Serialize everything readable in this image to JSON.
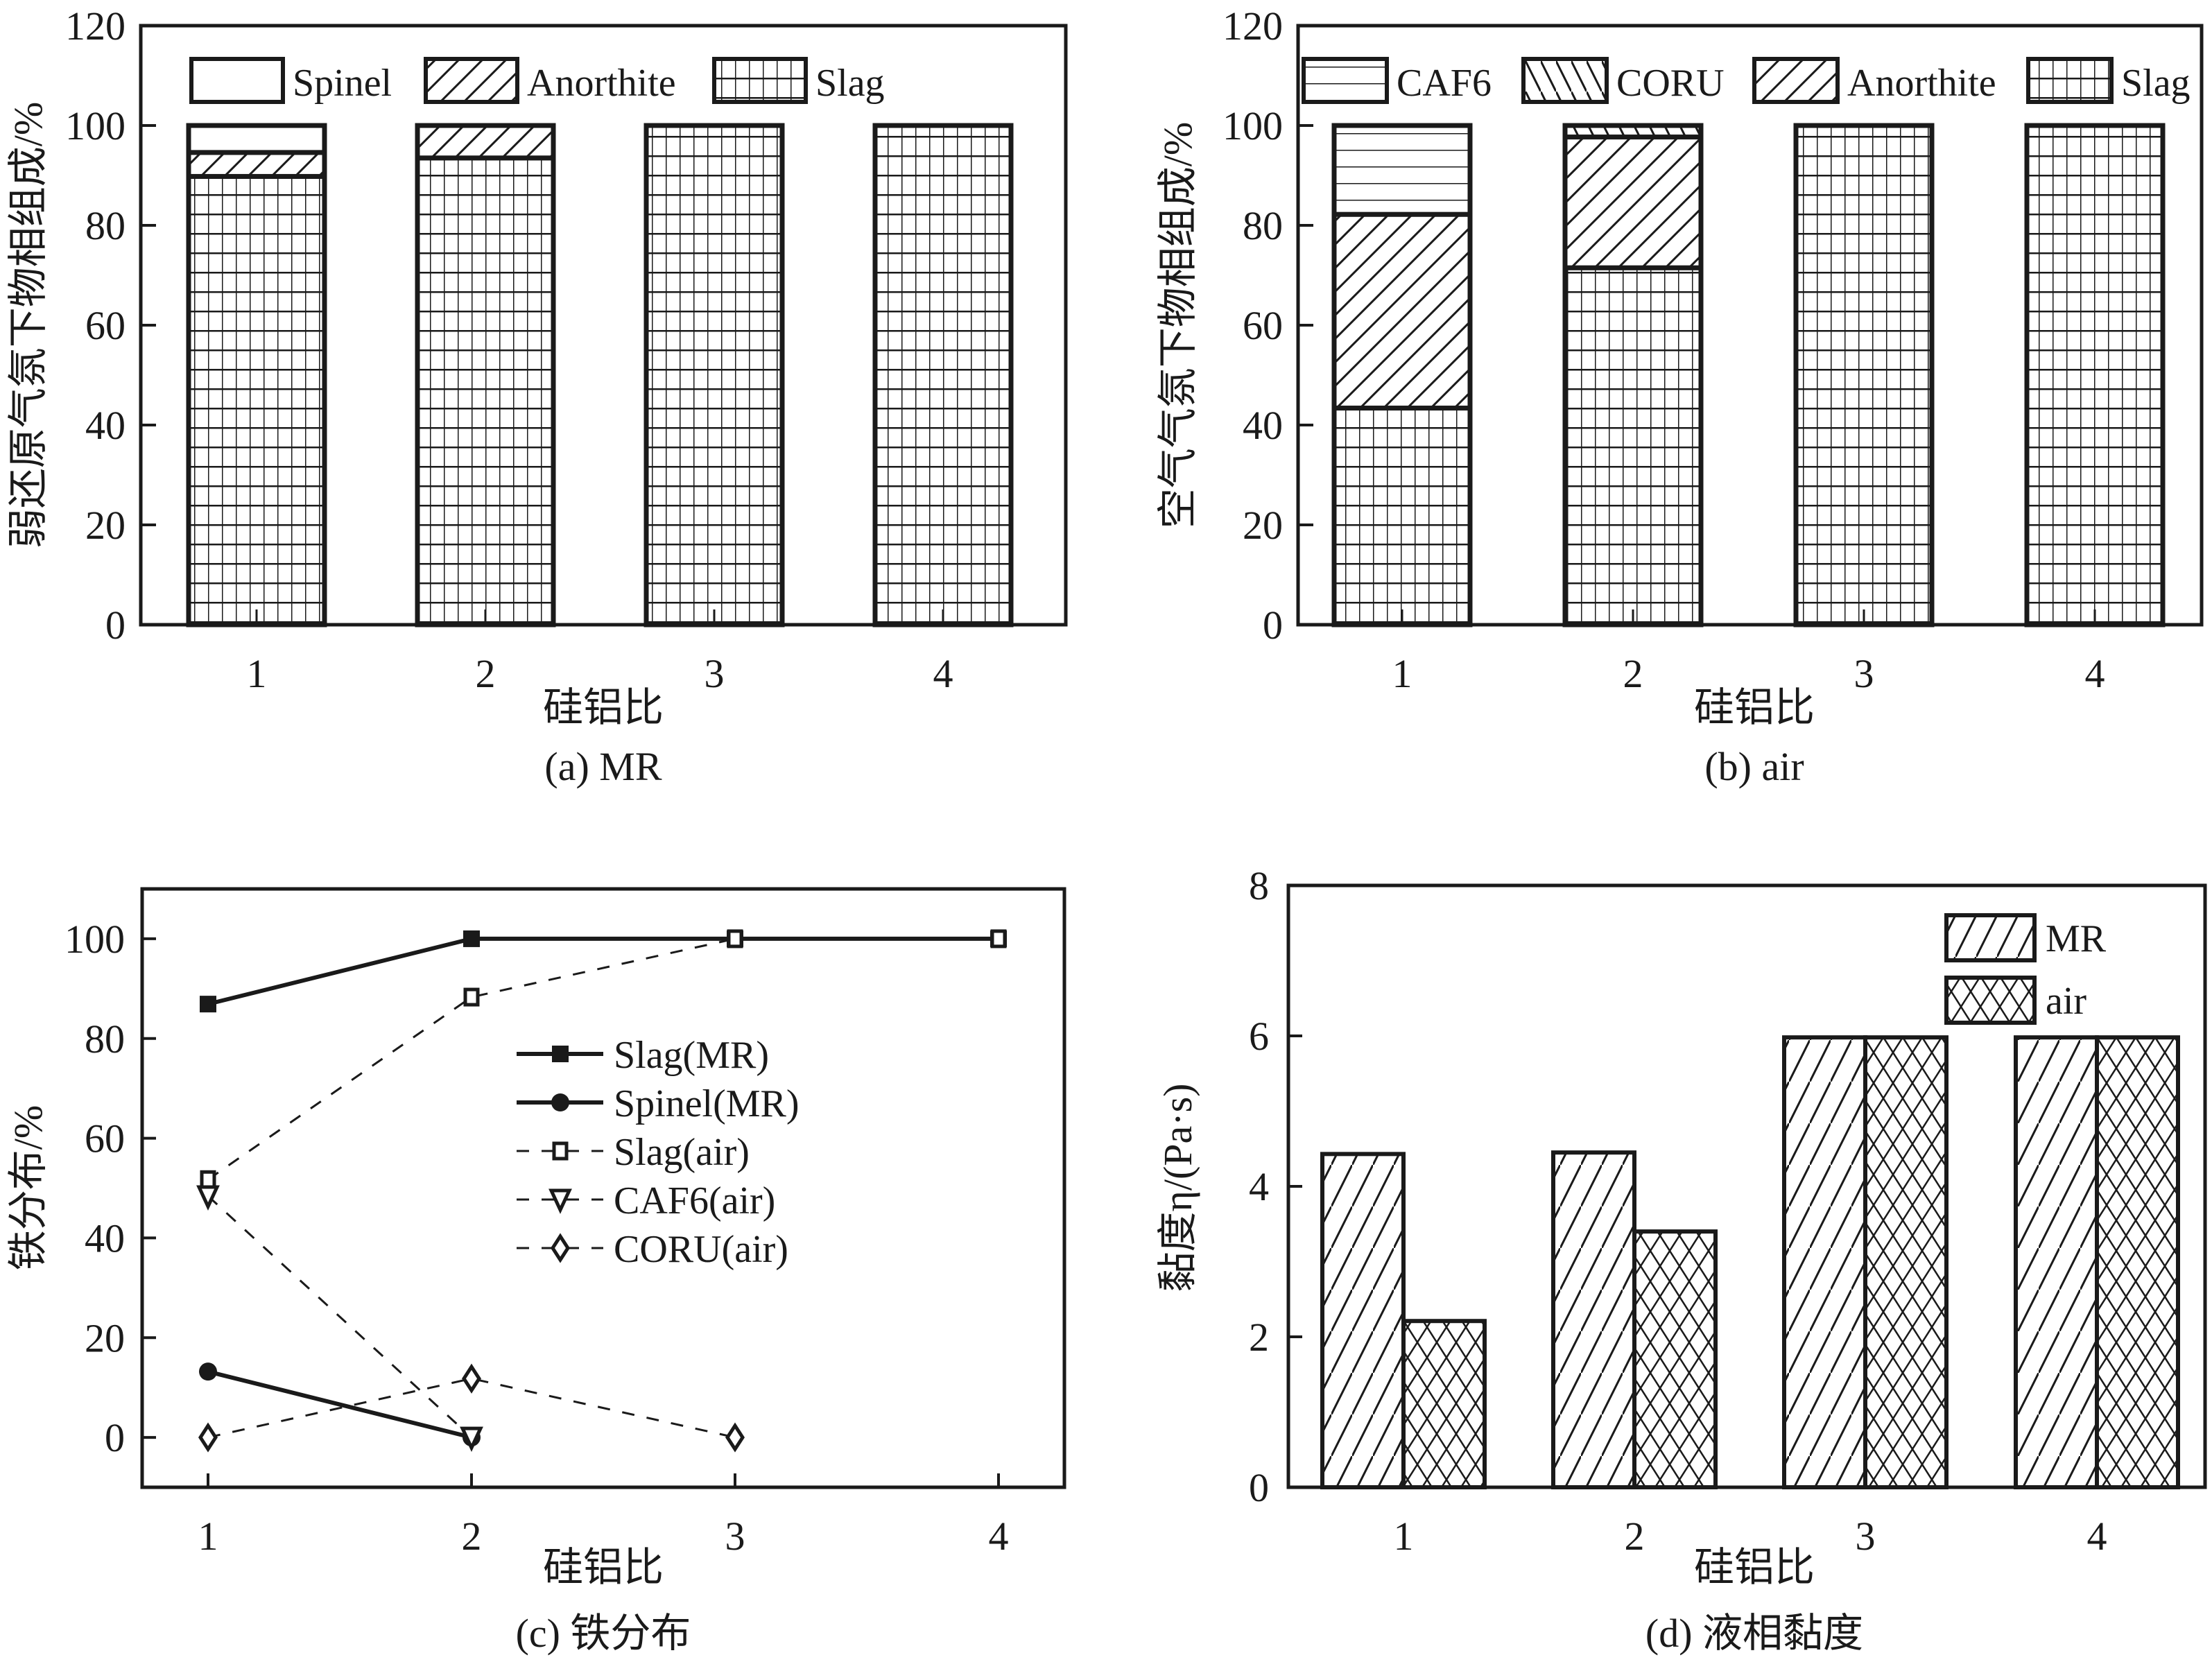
{
  "chart_data": [
    {
      "id": "a",
      "type": "bar",
      "stacked": true,
      "caption": "(a) MR",
      "xlabel": "硅铝比",
      "ylabel": "弱还原气氛下物相组成/%",
      "categories": [
        "1",
        "2",
        "3",
        "4"
      ],
      "ylim": [
        0,
        120
      ],
      "yticks": [
        "0",
        "20",
        "40",
        "60",
        "80",
        "100",
        "120"
      ],
      "legend_position": "top",
      "series": [
        {
          "name": "Slag",
          "pattern": "grid",
          "values": [
            89.8,
            93.5,
            100,
            100
          ]
        },
        {
          "name": "Anorthite",
          "pattern": "diagonal",
          "values": [
            4.8,
            6.5,
            0,
            0
          ]
        },
        {
          "name": "Spinel",
          "pattern": "none",
          "values": [
            5.4,
            0,
            0,
            0
          ]
        }
      ],
      "legend_order": [
        "Spinel",
        "Anorthite",
        "Slag"
      ]
    },
    {
      "id": "b",
      "type": "bar",
      "stacked": true,
      "caption": "(b) air",
      "xlabel": "硅铝比",
      "ylabel": "空气气氛下物相组成/%",
      "categories": [
        "1",
        "2",
        "3",
        "4"
      ],
      "ylim": [
        0,
        120
      ],
      "yticks": [
        "0",
        "20",
        "40",
        "60",
        "80",
        "100",
        "120"
      ],
      "legend_position": "top",
      "series": [
        {
          "name": "Slag",
          "pattern": "grid",
          "values": [
            43.4,
            71.5,
            100,
            100
          ]
        },
        {
          "name": "Anorthite",
          "pattern": "diagonal",
          "values": [
            38.8,
            26.2,
            0,
            0
          ]
        },
        {
          "name": "CORU",
          "pattern": "back-diagonal",
          "values": [
            0,
            2.3,
            0,
            0
          ]
        },
        {
          "name": "CAF6",
          "pattern": "horizontal",
          "values": [
            17.8,
            0,
            0,
            0
          ]
        }
      ],
      "legend_order": [
        "CAF6",
        "CORU",
        "Anorthite",
        "Slag"
      ]
    },
    {
      "id": "c",
      "type": "line",
      "caption": "(c) 铁分布",
      "xlabel": "硅铝比",
      "ylabel": "铁分布/%",
      "x": [
        1,
        2,
        3,
        4
      ],
      "xticks": [
        "1",
        "2",
        "3",
        "4"
      ],
      "xlim": [
        0.75,
        4.25
      ],
      "ylim": [
        -10,
        110
      ],
      "yticks": [
        "0",
        "20",
        "40",
        "60",
        "80",
        "100"
      ],
      "legend_position": "center",
      "series": [
        {
          "name": "Slag(MR)",
          "style": "solid",
          "marker": "filled-square",
          "x": [
            1,
            2,
            3,
            4
          ],
          "values": [
            86.9,
            100,
            100,
            100
          ]
        },
        {
          "name": "Spinel(MR)",
          "style": "solid",
          "marker": "filled-circle",
          "x": [
            1,
            2
          ],
          "values": [
            13.2,
            0
          ]
        },
        {
          "name": "Slag(air)",
          "style": "dashed",
          "marker": "open-square",
          "x": [
            1,
            2,
            3,
            4
          ],
          "values": [
            51.7,
            88.3,
            100,
            100
          ]
        },
        {
          "name": "CAF6(air)",
          "style": "dashed",
          "marker": "open-triangle-down",
          "x": [
            1,
            2
          ],
          "values": [
            48.4,
            0
          ]
        },
        {
          "name": "CORU(air)",
          "style": "dashed",
          "marker": "open-diamond",
          "x": [
            1,
            2,
            3
          ],
          "values": [
            0,
            11.8,
            0
          ]
        }
      ]
    },
    {
      "id": "d",
      "type": "bar",
      "grouped": true,
      "caption": "(d) 液相黏度",
      "xlabel": "硅铝比",
      "ylabel": "黏度η/(Pa·s)",
      "categories": [
        "1",
        "2",
        "3",
        "4"
      ],
      "ylim": [
        0,
        8
      ],
      "yticks": [
        "0",
        "2",
        "4",
        "6",
        "8"
      ],
      "legend_position": "top-right",
      "series": [
        {
          "name": "MR",
          "pattern": "diagonal",
          "values": [
            4.43,
            4.45,
            5.98,
            5.98
          ]
        },
        {
          "name": "air",
          "pattern": "crosshatch",
          "values": [
            2.21,
            3.4,
            5.98,
            5.98
          ]
        }
      ]
    }
  ]
}
